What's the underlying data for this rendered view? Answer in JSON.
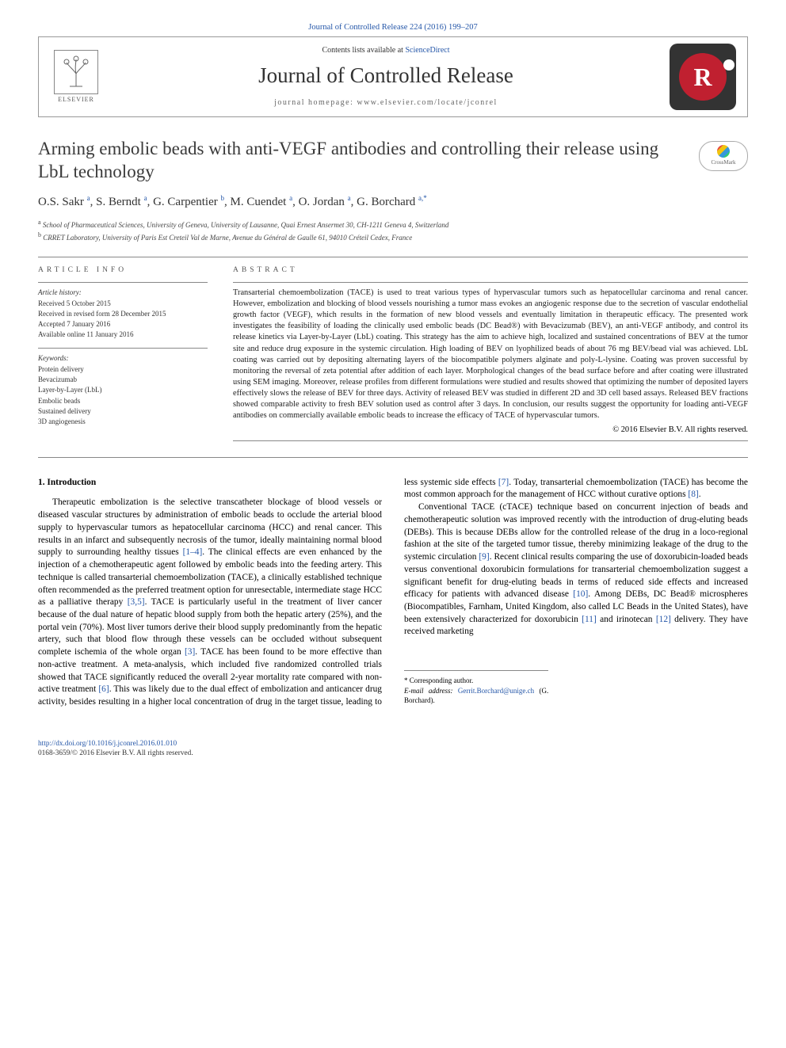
{
  "top_link": "Journal of Controlled Release 224 (2016) 199–207",
  "header": {
    "contents_prefix": "Contents lists available at ",
    "contents_link": "ScienceDirect",
    "journal_name": "Journal of Controlled Release",
    "homepage_prefix": "journal homepage: ",
    "homepage_url": "www.elsevier.com/locate/jconrel",
    "elsevier_label": "ELSEVIER",
    "journal_logo_letter": "R"
  },
  "crossmark_label": "CrossMark",
  "title": "Arming embolic beads with anti-VEGF antibodies and controlling their release using LbL technology",
  "authors_html": "O.S. Sakr <sup>a</sup>, S. Berndt <sup>a</sup>, G. Carpentier <sup>b</sup>, M. Cuendet <sup>a</sup>, O. Jordan <sup>a</sup>, G. Borchard <sup>a,*</sup>",
  "affiliations": {
    "a": "School of Pharmaceutical Sciences, University of Geneva, University of Lausanne, Quai Ernest Ansermet 30, CH-1211 Geneva 4, Switzerland",
    "b": "CRRET Laboratory, University of Paris Est Creteil Val de Marne, Avenue du Général de Gaulle 61, 94010 Créteil Cedex, France"
  },
  "info": {
    "label": "article info",
    "history_head": "Article history:",
    "history": [
      "Received 5 October 2015",
      "Received in revised form 28 December 2015",
      "Accepted 7 January 2016",
      "Available online 11 January 2016"
    ],
    "keywords_head": "Keywords:",
    "keywords": [
      "Protein delivery",
      "Bevacizumab",
      "Layer-by-Layer (LbL)",
      "Embolic beads",
      "Sustained delivery",
      "3D angiogenesis"
    ]
  },
  "abstract": {
    "label": "abstract",
    "text": "Transarterial chemoembolization (TACE) is used to treat various types of hypervascular tumors such as hepatocellular carcinoma and renal cancer. However, embolization and blocking of blood vessels nourishing a tumor mass evokes an angiogenic response due to the secretion of vascular endothelial growth factor (VEGF), which results in the formation of new blood vessels and eventually limitation in therapeutic efficacy. The presented work investigates the feasibility of loading the clinically used embolic beads (DC Bead®) with Bevacizumab (BEV), an anti-VEGF antibody, and control its release kinetics via Layer-by-Layer (LbL) coating. This strategy has the aim to achieve high, localized and sustained concentrations of BEV at the tumor site and reduce drug exposure in the systemic circulation. High loading of BEV on lyophilized beads of about 76 mg BEV/bead vial was achieved. LbL coating was carried out by depositing alternating layers of the biocompatible polymers alginate and poly-L-lysine. Coating was proven successful by monitoring the reversal of zeta potential after addition of each layer. Morphological changes of the bead surface before and after coating were illustrated using SEM imaging. Moreover, release profiles from different formulations were studied and results showed that optimizing the number of deposited layers effectively slows the release of BEV for three days. Activity of released BEV was studied in different 2D and 3D cell based assays. Released BEV fractions showed comparable activity to fresh BEV solution used as control after 3 days. In conclusion, our results suggest the opportunity for loading anti-VEGF antibodies on commercially available embolic beads to increase the efficacy of TACE of hypervascular tumors.",
    "copyright": "© 2016 Elsevier B.V. All rights reserved."
  },
  "body": {
    "heading": "1. Introduction",
    "p1_a": "Therapeutic embolization is the selective transcatheter blockage of blood vessels or diseased vascular structures by administration of embolic beads to occlude the arterial blood supply to hypervascular tumors as hepatocellular carcinoma (HCC) and renal cancer. This results in an infarct and subsequently necrosis of the tumor, ideally maintaining normal blood supply to surrounding healthy tissues ",
    "c14": "[1–4]",
    "p1_b": ". The clinical effects are even enhanced by the injection of a chemotherapeutic agent followed by embolic beads into the feeding artery. This technique is called transarterial chemoembolization (TACE), a clinically established technique often recommended as the preferred treatment option for unresectable, intermediate stage HCC as a palliative therapy ",
    "c35": "[3,5]",
    "p1_c": ". TACE is particularly useful in the treatment of liver cancer because of the dual nature of hepatic blood supply from both the hepatic artery (25%), and the portal vein (70%). Most liver tumors derive their blood supply predominantly from the hepatic artery, such that blood flow through these vessels can be occluded without subsequent complete ",
    "p2_a": "ischemia of the whole organ ",
    "c3": "[3]",
    "p2_b": ". TACE has been found to be more effective than non-active treatment. A meta-analysis, which included five randomized controlled trials showed that TACE significantly reduced the overall 2-year mortality rate compared with non-active treatment ",
    "c6": "[6]",
    "p2_c": ". This was likely due to the dual effect of embolization and anticancer drug activity, besides resulting in a higher local concentration of drug in the target tissue, leading to less systemic side effects ",
    "c7": "[7]",
    "p2_d": ". Today, transarterial chemoembolization (TACE) has become the most common approach for the management of HCC without curative options ",
    "c8": "[8]",
    "p2_e": ".",
    "p3_a": "Conventional TACE (cTACE) technique based on concurrent injection of beads and chemotherapeutic solution was improved recently with the introduction of drug-eluting beads (DEBs). This is because DEBs allow for the controlled release of the drug in a loco-regional fashion at the site of the targeted tumor tissue, thereby minimizing leakage of the drug to the systemic circulation ",
    "c9": "[9]",
    "p3_b": ". Recent clinical results comparing the use of doxorubicin-loaded beads versus conventional doxorubicin formulations for transarterial chemoembolization suggest a significant benefit for drug-eluting beads in terms of reduced side effects and increased efficacy for patients with advanced disease ",
    "c10": "[10]",
    "p3_c": ". Among DEBs, DC Bead® microspheres (Biocompatibles, Farnham, United Kingdom, also called LC Beads in the United States), have been extensively characterized for doxorubicin ",
    "c11": "[11]",
    "p3_d": " and irinotecan ",
    "c12": "[12]",
    "p3_e": " delivery. They have received marketing"
  },
  "corresponding": {
    "star": "* Corresponding author.",
    "email_label": "E-mail address: ",
    "email": "Gerrit.Borchard@unige.ch",
    "email_suffix": " (G. Borchard)."
  },
  "footer": {
    "doi": "http://dx.doi.org/10.1016/j.jconrel.2016.01.010",
    "issn_line": "0168-3659/© 2016 Elsevier B.V. All rights reserved."
  },
  "colors": {
    "link": "#2456a8",
    "text": "#000000",
    "muted": "#555555",
    "border": "#888888",
    "logo_bg": "#333333",
    "logo_red": "#c02030"
  }
}
